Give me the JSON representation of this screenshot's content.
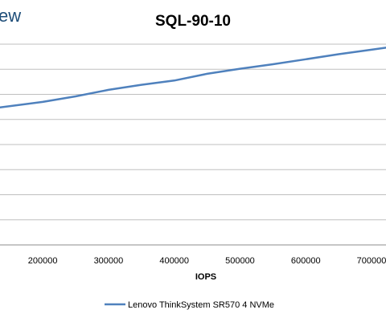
{
  "logo": {
    "text": "ew"
  },
  "chart_data": {
    "type": "line",
    "title": "SQL-90-10",
    "xlabel": "IOPS",
    "ylabel": "",
    "x_ticks": [
      200000,
      300000,
      400000,
      500000,
      600000,
      700000
    ],
    "xlim": [
      135000,
      722000
    ],
    "ylim": [
      0,
      8
    ],
    "grid": true,
    "legend_position": "bottom",
    "series": [
      {
        "name": "Lenovo ThinkSystem SR570 4 NVMe",
        "color": "#4f81bd",
        "points": [
          [
            135000,
            5.48
          ],
          [
            200000,
            5.7
          ],
          [
            250000,
            5.92
          ],
          [
            300000,
            6.18
          ],
          [
            350000,
            6.38
          ],
          [
            400000,
            6.55
          ],
          [
            450000,
            6.82
          ],
          [
            500000,
            7.02
          ],
          [
            550000,
            7.2
          ],
          [
            600000,
            7.4
          ],
          [
            650000,
            7.6
          ],
          [
            700000,
            7.78
          ],
          [
            722000,
            7.86
          ]
        ]
      }
    ]
  }
}
